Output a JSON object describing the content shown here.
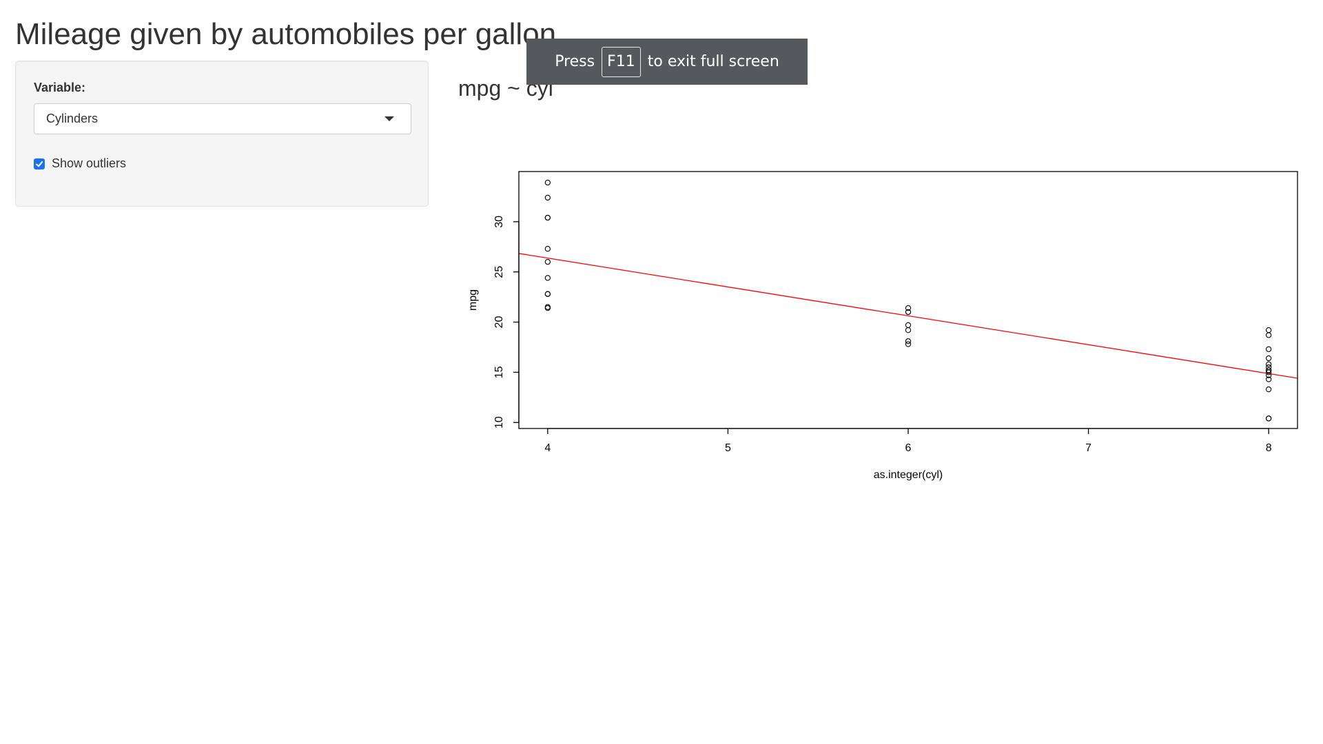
{
  "app": {
    "title": "Mileage given by automobiles per gallon"
  },
  "sidebar": {
    "variable_label": "Variable:",
    "variable_select": {
      "selected": "Cylinders"
    },
    "show_outliers": {
      "label": "Show outliers",
      "checked": true
    }
  },
  "fullscreen_toast": {
    "before": "Press",
    "key": "F11",
    "after": "to exit full screen"
  },
  "plot": {
    "title": "mpg ~ cyl"
  },
  "chart_data": {
    "type": "scatter",
    "title": "mpg ~ cyl",
    "xlabel": "as.integer(cyl)",
    "ylabel": "mpg",
    "xlim": [
      3.84,
      8.16
    ],
    "ylim": [
      9.4,
      35.0
    ],
    "x_ticks": [
      4,
      5,
      6,
      7,
      8
    ],
    "y_ticks": [
      10,
      15,
      20,
      25,
      30
    ],
    "x_tick_labels": [
      "4",
      "5",
      "6",
      "7",
      "8"
    ],
    "y_tick_labels": [
      "10",
      "15",
      "20",
      "25",
      "30"
    ],
    "grid": false,
    "legend": "none",
    "points": [
      {
        "x": 4,
        "y": 22.8
      },
      {
        "x": 4,
        "y": 24.4
      },
      {
        "x": 4,
        "y": 22.8
      },
      {
        "x": 4,
        "y": 32.4
      },
      {
        "x": 4,
        "y": 30.4
      },
      {
        "x": 4,
        "y": 33.9
      },
      {
        "x": 4,
        "y": 21.5
      },
      {
        "x": 4,
        "y": 27.3
      },
      {
        "x": 4,
        "y": 26.0
      },
      {
        "x": 4,
        "y": 30.4
      },
      {
        "x": 4,
        "y": 21.4
      },
      {
        "x": 6,
        "y": 21.0
      },
      {
        "x": 6,
        "y": 21.0
      },
      {
        "x": 6,
        "y": 21.4
      },
      {
        "x": 6,
        "y": 18.1
      },
      {
        "x": 6,
        "y": 19.2
      },
      {
        "x": 6,
        "y": 17.8
      },
      {
        "x": 6,
        "y": 19.7
      },
      {
        "x": 8,
        "y": 18.7
      },
      {
        "x": 8,
        "y": 14.3
      },
      {
        "x": 8,
        "y": 16.4
      },
      {
        "x": 8,
        "y": 17.3
      },
      {
        "x": 8,
        "y": 15.2
      },
      {
        "x": 8,
        "y": 10.4
      },
      {
        "x": 8,
        "y": 10.4
      },
      {
        "x": 8,
        "y": 14.7
      },
      {
        "x": 8,
        "y": 15.5
      },
      {
        "x": 8,
        "y": 15.2
      },
      {
        "x": 8,
        "y": 13.3
      },
      {
        "x": 8,
        "y": 19.2
      },
      {
        "x": 8,
        "y": 15.8
      },
      {
        "x": 8,
        "y": 15.0
      }
    ],
    "regression_line": {
      "intercept": 37.88,
      "slope": -2.876,
      "color": "#ff0000"
    },
    "point_color": "#000000"
  }
}
